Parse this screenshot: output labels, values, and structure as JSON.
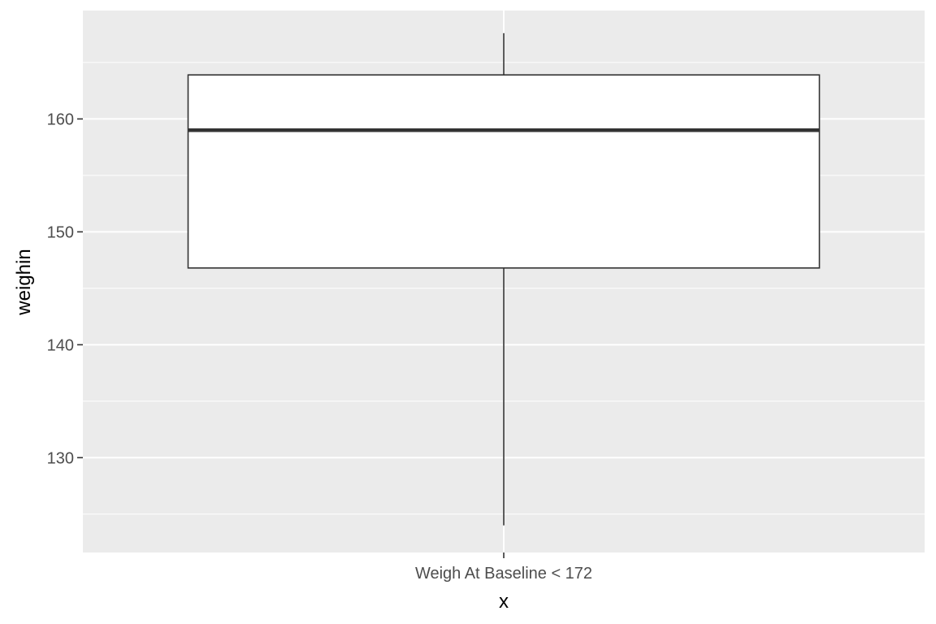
{
  "chart_data": {
    "type": "boxplot",
    "title": "",
    "xlabel": "x",
    "ylabel": "weighin",
    "categories": [
      "Weigh At Baseline < 172"
    ],
    "boxes": [
      {
        "category": "Weigh At Baseline < 172",
        "whisker_low": 124.0,
        "q1": 146.8,
        "median": 159.0,
        "q3": 163.9,
        "whisker_high": 167.6
      }
    ],
    "ylim": [
      121.6,
      169.6
    ],
    "y_ticks": [
      130,
      140,
      150,
      160
    ],
    "y_minor_ticks": [
      125,
      135,
      145,
      155,
      165
    ],
    "grid": true,
    "legend": "none",
    "colors": {
      "panel": "#ebebeb",
      "grid": "#ffffff",
      "box_fill": "#ffffff",
      "box_stroke": "#333333",
      "tick": "#333333"
    }
  }
}
